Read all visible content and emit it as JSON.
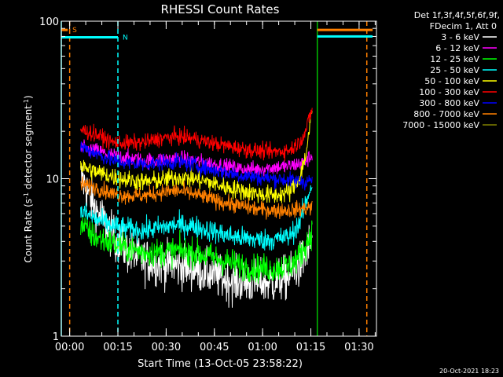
{
  "chart_data": {
    "type": "line",
    "title": "RHESSI Count Rates",
    "xlabel": "Start Time (13-Oct-05 23:58:22)",
    "ylabel_parts": [
      "Count Rate (s",
      "-1",
      " detector segment",
      "-1",
      ")"
    ],
    "x_unit": "minutes from start time",
    "xlim": [
      -1,
      97
    ],
    "ylim": [
      1,
      100
    ],
    "y_scale": "log",
    "x_ticks": [
      {
        "value": 1.6,
        "label": "00:00"
      },
      {
        "value": 16.6,
        "label": "00:15"
      },
      {
        "value": 31.6,
        "label": "00:30"
      },
      {
        "value": 46.6,
        "label": "00:45"
      },
      {
        "value": 61.6,
        "label": "01:00"
      },
      {
        "value": 76.6,
        "label": "01:15"
      },
      {
        "value": 91.6,
        "label": "01:30"
      }
    ],
    "y_ticks": [
      {
        "value": 1,
        "label": "1"
      },
      {
        "value": 10,
        "label": "10"
      },
      {
        "value": 100,
        "label": "100"
      }
    ],
    "legend_header": [
      "Det 1f,3f,4f,5f,6f,9f,",
      "FDecim 1, Att 0"
    ],
    "legend_position": "top-right outside plot",
    "series": [
      {
        "name": "3 - 6 keV",
        "color": "#ffffff",
        "noise": 0.14,
        "points": [
          [
            5,
            10.2
          ],
          [
            6,
            9.5
          ],
          [
            8,
            7.5
          ],
          [
            10,
            6.2
          ],
          [
            12,
            5.5
          ],
          [
            13,
            5.0
          ],
          [
            14,
            4.6
          ],
          [
            15,
            4.3
          ],
          [
            17,
            3.9
          ],
          [
            20,
            3.4
          ],
          [
            25,
            3.0
          ],
          [
            30,
            2.9
          ],
          [
            35,
            2.8
          ],
          [
            40,
            2.7
          ],
          [
            45,
            2.5
          ],
          [
            50,
            2.3
          ],
          [
            55,
            2.2
          ],
          [
            60,
            2.2
          ],
          [
            65,
            2.2
          ],
          [
            70,
            2.4
          ],
          [
            73,
            2.8
          ],
          [
            75,
            3.3
          ],
          [
            77,
            4.2
          ]
        ]
      },
      {
        "name": "6 - 12 keV",
        "color": "#ff00ff",
        "noise": 0.05,
        "points": [
          [
            5,
            15.5
          ],
          [
            10,
            15.0
          ],
          [
            15,
            14.0
          ],
          [
            20,
            13.5
          ],
          [
            25,
            13.0
          ],
          [
            30,
            13.2
          ],
          [
            35,
            13.5
          ],
          [
            40,
            13.0
          ],
          [
            45,
            12.5
          ],
          [
            50,
            12.0
          ],
          [
            55,
            11.5
          ],
          [
            60,
            11.5
          ],
          [
            65,
            11.8
          ],
          [
            70,
            12.0
          ],
          [
            73,
            12.5
          ],
          [
            75,
            13.0
          ],
          [
            77,
            14.0
          ]
        ]
      },
      {
        "name": "12 - 25 keV",
        "color": "#00ff00",
        "noise": 0.09,
        "points": [
          [
            5,
            5.2
          ],
          [
            8,
            4.5
          ],
          [
            10,
            4.2
          ],
          [
            15,
            3.9
          ],
          [
            20,
            3.6
          ],
          [
            25,
            3.4
          ],
          [
            30,
            3.4
          ],
          [
            35,
            3.5
          ],
          [
            40,
            3.4
          ],
          [
            45,
            3.2
          ],
          [
            50,
            3.0
          ],
          [
            55,
            2.8
          ],
          [
            60,
            2.7
          ],
          [
            65,
            2.7
          ],
          [
            70,
            2.8
          ],
          [
            73,
            3.2
          ],
          [
            75,
            3.8
          ],
          [
            77,
            4.6
          ]
        ]
      },
      {
        "name": "25 - 50 keV",
        "color": "#00ffff",
        "noise": 0.07,
        "points": [
          [
            5,
            6.2
          ],
          [
            10,
            5.5
          ],
          [
            15,
            5.0
          ],
          [
            20,
            4.8
          ],
          [
            25,
            4.7
          ],
          [
            30,
            4.9
          ],
          [
            35,
            5.1
          ],
          [
            40,
            5.0
          ],
          [
            45,
            4.7
          ],
          [
            50,
            4.4
          ],
          [
            55,
            4.2
          ],
          [
            60,
            4.1
          ],
          [
            65,
            4.1
          ],
          [
            70,
            4.3
          ],
          [
            73,
            5.2
          ],
          [
            75,
            7.0
          ],
          [
            77,
            9.5
          ]
        ]
      },
      {
        "name": "50 - 100 keV",
        "color": "#ffff00",
        "noise": 0.06,
        "points": [
          [
            5,
            12.0
          ],
          [
            10,
            11.0
          ],
          [
            15,
            10.3
          ],
          [
            20,
            9.8
          ],
          [
            25,
            9.5
          ],
          [
            30,
            9.8
          ],
          [
            35,
            10.2
          ],
          [
            40,
            10.0
          ],
          [
            45,
            9.5
          ],
          [
            50,
            8.8
          ],
          [
            55,
            8.4
          ],
          [
            60,
            8.0
          ],
          [
            65,
            7.8
          ],
          [
            70,
            8.2
          ],
          [
            73,
            10.0
          ],
          [
            75,
            14.0
          ],
          [
            77,
            27.0
          ]
        ]
      },
      {
        "name": "100 - 300 keV",
        "color": "#ff0000",
        "noise": 0.05,
        "points": [
          [
            5,
            20.5
          ],
          [
            10,
            19.0
          ],
          [
            15,
            17.0
          ],
          [
            20,
            16.8
          ],
          [
            25,
            17.0
          ],
          [
            30,
            18.0
          ],
          [
            35,
            18.5
          ],
          [
            40,
            18.0
          ],
          [
            45,
            17.0
          ],
          [
            50,
            16.2
          ],
          [
            55,
            15.5
          ],
          [
            60,
            15.0
          ],
          [
            65,
            14.8
          ],
          [
            70,
            15.2
          ],
          [
            73,
            17.0
          ],
          [
            75,
            20.0
          ],
          [
            77,
            28.0
          ]
        ]
      },
      {
        "name": "300 - 800 keV",
        "color": "#0000ff",
        "noise": 0.05,
        "points": [
          [
            5,
            16.0
          ],
          [
            10,
            14.5
          ],
          [
            15,
            13.0
          ],
          [
            20,
            12.5
          ],
          [
            25,
            12.4
          ],
          [
            30,
            12.6
          ],
          [
            35,
            12.8
          ],
          [
            40,
            12.3
          ],
          [
            45,
            11.5
          ],
          [
            50,
            11.0
          ],
          [
            55,
            10.5
          ],
          [
            60,
            10.2
          ],
          [
            65,
            10.0
          ],
          [
            70,
            9.8
          ],
          [
            73,
            9.6
          ],
          [
            75,
            9.6
          ],
          [
            77,
            9.8
          ]
        ]
      },
      {
        "name": "800 - 7000 keV",
        "color": "#ff8000",
        "noise": 0.05,
        "points": [
          [
            5,
            9.2
          ],
          [
            10,
            8.8
          ],
          [
            15,
            8.0
          ],
          [
            20,
            7.8
          ],
          [
            25,
            7.8
          ],
          [
            30,
            8.2
          ],
          [
            35,
            8.4
          ],
          [
            40,
            8.0
          ],
          [
            45,
            7.5
          ],
          [
            50,
            7.0
          ],
          [
            55,
            6.7
          ],
          [
            60,
            6.4
          ],
          [
            65,
            6.3
          ],
          [
            70,
            6.3
          ],
          [
            73,
            6.4
          ],
          [
            75,
            6.5
          ],
          [
            77,
            6.6
          ]
        ]
      },
      {
        "name": "7000 - 15000 keV",
        "color": "#808000",
        "noise": 0.05,
        "points": []
      }
    ],
    "overlays": {
      "vlines": [
        {
          "x": -1,
          "color": "#00ffff",
          "dash": false
        },
        {
          "x": 1.6,
          "color": "#ff8000",
          "dash": true
        },
        {
          "x": 16.6,
          "color": "#00ffff",
          "dash": true
        },
        {
          "x": 78.6,
          "color": "#00c000",
          "dash": false
        },
        {
          "x": 94.0,
          "color": "#ff8000",
          "dash": true
        }
      ],
      "flag_bars": [
        {
          "x1": -1,
          "x2": 16.6,
          "y": 79,
          "color": "#00ffff",
          "label": "N"
        },
        {
          "x1": -1,
          "x2": 1.0,
          "y": 88,
          "color": "#ff8000",
          "label": "S"
        },
        {
          "x1": 78.6,
          "x2": 95.8,
          "y": 88,
          "color": "#ff8000",
          "label": ""
        },
        {
          "x1": 78.6,
          "x2": 95.8,
          "y": 80,
          "color": "#00ffff",
          "label": ""
        }
      ]
    }
  },
  "footer": {
    "timestamp": "20-Oct-2021 18:23"
  }
}
